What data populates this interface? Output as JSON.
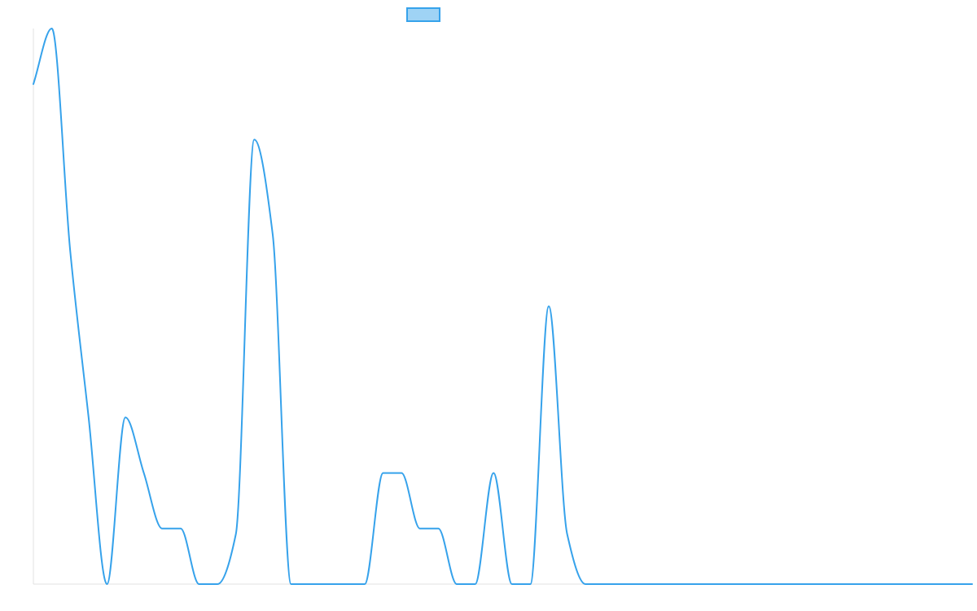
{
  "colors": {
    "series_stroke": "#36a2eb",
    "legend_fill": "#9fd3f5",
    "axis": "#e0e0e0"
  },
  "chart_data": {
    "type": "line",
    "title": "",
    "xlabel": "",
    "ylabel": "",
    "grid": false,
    "legend": {
      "position": "top-center",
      "entries": [
        ""
      ]
    },
    "xlim": [
      0,
      51
    ],
    "ylim": [
      0,
      100
    ],
    "series": [
      {
        "values": [
          90,
          100,
          60,
          30,
          0,
          30,
          20,
          10,
          10,
          0,
          0,
          9,
          80,
          63,
          0,
          0,
          0,
          0,
          0,
          20,
          20,
          10,
          10,
          0,
          0,
          20,
          0,
          0,
          50,
          9,
          0,
          0,
          0,
          0,
          0,
          0,
          0,
          0,
          0,
          0,
          0,
          0,
          0,
          0,
          0,
          0,
          0,
          0,
          0,
          0,
          0,
          0
        ]
      }
    ]
  }
}
